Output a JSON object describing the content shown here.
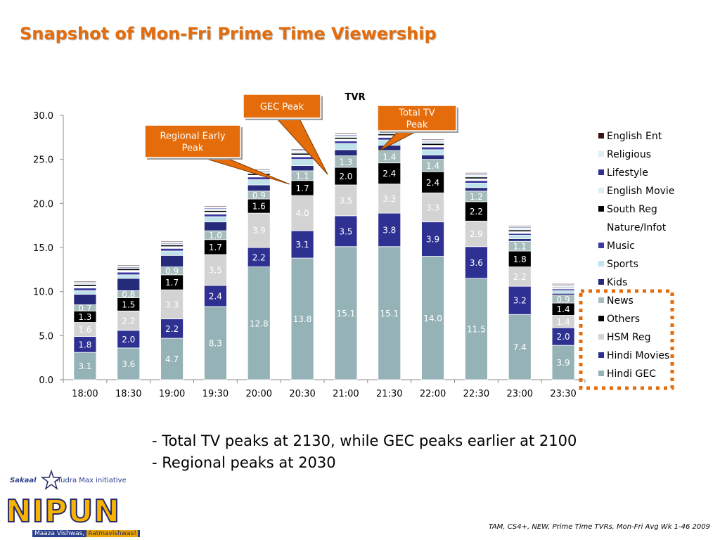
{
  "page": {
    "title": "Snapshot of Mon-Fri Prime Time Viewership",
    "notes": [
      "- Total TV peaks at 2130, while GEC peaks earlier at 2100",
      "- Regional peaks at 2030"
    ],
    "source": "TAM, CS4+, NEW,  Prime Time TVRs, Mon-Fri Avg Wk 1-46 2009",
    "logo": {
      "brand": "Sakaal",
      "initiative": "Mudra Max initiative",
      "word": "NIPUN",
      "tag_left": "Maaza Vishwas,",
      "tag_right": "Aatmavishwas!"
    }
  },
  "callouts": [
    {
      "name": "gec-peak",
      "text": [
        "GEC Peak"
      ]
    },
    {
      "name": "total-tv-peak",
      "text": [
        "Total TV",
        "Peak"
      ]
    },
    {
      "name": "regional-early-peak",
      "text": [
        "Regional Early",
        "Peak"
      ]
    }
  ],
  "chart_data": {
    "type": "bar",
    "stacked": true,
    "title": "TVR",
    "ylim": [
      0,
      30
    ],
    "yticks": [
      "0.0",
      "5.0",
      "10.0",
      "15.0",
      "20.0",
      "25.0",
      "30.0"
    ],
    "ytick_values": [
      0,
      5,
      10,
      15,
      20,
      25,
      30
    ],
    "legend_position": "right",
    "categories": [
      "18:00",
      "18:30",
      "19:00",
      "19:30",
      "20:00",
      "20:30",
      "21:00",
      "21:30",
      "22:00",
      "22:30",
      "23:00",
      "23:30"
    ],
    "series": [
      {
        "name": "Hindi GEC",
        "color": "#95b3b6",
        "label_color": "#ffffff",
        "values": [
          3.1,
          3.6,
          4.7,
          8.3,
          12.8,
          13.8,
          15.1,
          15.1,
          14.0,
          11.5,
          7.4,
          3.9
        ],
        "labels": [
          "3.1",
          "3.6",
          "4.7",
          "8.3",
          "12.8",
          "13.8",
          "15.1",
          "15.1",
          "14.0",
          "11.5",
          "7.4",
          "3.9"
        ]
      },
      {
        "name": "Hindi Movies",
        "color": "#2e3192",
        "label_color": "#ffffff",
        "values": [
          1.8,
          2.0,
          2.2,
          2.4,
          2.2,
          3.1,
          3.5,
          3.8,
          3.9,
          3.6,
          3.2,
          2.0
        ],
        "labels": [
          "1.8",
          "2.0",
          "2.2",
          "2.4",
          "2.2",
          "3.1",
          "3.5",
          "3.8",
          "3.9",
          "3.6",
          "3.2",
          "2.0"
        ]
      },
      {
        "name": "HSM Reg",
        "color": "#d3d3d3",
        "label_color": "#ffffff",
        "values": [
          1.6,
          2.2,
          3.3,
          3.5,
          3.9,
          4.0,
          3.5,
          3.3,
          3.3,
          2.9,
          2.2,
          1.4
        ],
        "labels": [
          "1.6",
          "2.2",
          "3.3",
          "3.5",
          "3.9",
          "4.0",
          "3.5",
          "3.3",
          "3.3",
          "2.9",
          "2.2",
          "1.4"
        ]
      },
      {
        "name": "Others",
        "color": "#000000",
        "label_color": "#ffffff",
        "values": [
          1.3,
          1.5,
          1.7,
          1.7,
          1.6,
          1.7,
          2.0,
          2.4,
          2.4,
          2.2,
          1.8,
          1.4
        ],
        "labels": [
          "1.3",
          "1.5",
          "1.7",
          "1.7",
          "1.6",
          "1.7",
          "2.0",
          "2.4",
          "2.4",
          "2.2",
          "1.8",
          "1.4"
        ]
      },
      {
        "name": "News",
        "color": "#a7bcbc",
        "label_color": "#ffffff",
        "values": [
          0.7,
          0.8,
          0.9,
          1.0,
          0.9,
          1.1,
          1.3,
          1.4,
          1.4,
          1.2,
          1.1,
          0.9
        ],
        "labels": [
          "0.7",
          "0.8",
          "0.9",
          "1.0",
          "0.9",
          "1.1",
          "1.3",
          "1.4",
          "1.4",
          "1.2",
          "1.1",
          "0.9"
        ]
      },
      {
        "name": "Kids",
        "color": "#252a7a",
        "label_color": "#ffffff",
        "values": [
          1.2,
          1.4,
          1.3,
          1.0,
          0.7,
          0.6,
          0.7,
          0.6,
          0.5,
          0.4,
          0.3,
          0.2
        ],
        "labels": [
          "",
          "",
          "",
          "",
          "",
          "",
          "",
          "",
          "",
          "",
          "",
          ""
        ]
      },
      {
        "name": "Sports",
        "color": "#bfe3ea",
        "label_color": "#ffffff",
        "values": [
          0.4,
          0.4,
          0.5,
          0.6,
          0.6,
          0.7,
          0.7,
          0.6,
          0.6,
          0.5,
          0.4,
          0.3
        ],
        "labels": [
          "",
          "",
          "",
          "",
          "",
          "",
          "",
          "",
          "",
          "",
          "",
          ""
        ]
      },
      {
        "name": "Music",
        "color": "#3a3aa0",
        "label_color": "#ffffff",
        "values": [
          0.3,
          0.3,
          0.3,
          0.3,
          0.3,
          0.3,
          0.3,
          0.3,
          0.3,
          0.3,
          0.2,
          0.2
        ],
        "labels": [
          "",
          "",
          "",
          "",
          "",
          "",
          "",
          "",
          "",
          "",
          "",
          ""
        ]
      },
      {
        "name": "Nature/Infot",
        "color": "#ffffff",
        "label_color": "#000000",
        "values": [
          0.2,
          0.2,
          0.2,
          0.2,
          0.2,
          0.2,
          0.2,
          0.2,
          0.2,
          0.2,
          0.2,
          0.1
        ],
        "labels": [
          "",
          "",
          "",
          "",
          "",
          "",
          "",
          "",
          "",
          "",
          "",
          ""
        ]
      },
      {
        "name": "South Reg",
        "color": "#000000",
        "label_color": "#ffffff",
        "values": [
          0.2,
          0.2,
          0.2,
          0.2,
          0.2,
          0.2,
          0.2,
          0.2,
          0.2,
          0.2,
          0.2,
          0.1
        ],
        "labels": [
          "",
          "",
          "",
          "",
          "",
          "",
          "",
          "",
          "",
          "",
          "",
          ""
        ]
      },
      {
        "name": "English Movie",
        "color": "#dceff3",
        "label_color": "#000000",
        "values": [
          0.1,
          0.1,
          0.1,
          0.2,
          0.2,
          0.2,
          0.2,
          0.2,
          0.2,
          0.2,
          0.2,
          0.1
        ],
        "labels": [
          "",
          "",
          "",
          "",
          "",
          "",
          "",
          "",
          "",
          "",
          "",
          ""
        ]
      },
      {
        "name": "Lifestyle",
        "color": "#2e3192",
        "label_color": "#ffffff",
        "values": [
          0.1,
          0.1,
          0.1,
          0.1,
          0.1,
          0.1,
          0.1,
          0.1,
          0.1,
          0.1,
          0.1,
          0.1
        ],
        "labels": [
          "",
          "",
          "",
          "",
          "",
          "",
          "",
          "",
          "",
          "",
          "",
          ""
        ]
      },
      {
        "name": "Religious",
        "color": "#dceff3",
        "label_color": "#000000",
        "values": [
          0.1,
          0.1,
          0.1,
          0.1,
          0.1,
          0.1,
          0.1,
          0.1,
          0.1,
          0.1,
          0.1,
          0.1
        ],
        "labels": [
          "",
          "",
          "",
          "",
          "",
          "",
          "",
          "",
          "",
          "",
          "",
          ""
        ]
      },
      {
        "name": "English Ent",
        "color": "#3a1010",
        "label_color": "#ffffff",
        "values": [
          0.1,
          0.1,
          0.1,
          0.1,
          0.1,
          0.1,
          0.1,
          0.1,
          0.1,
          0.1,
          0.1,
          0.1
        ],
        "labels": [
          "",
          "",
          "",
          "",
          "",
          "",
          "",
          "",
          "",
          "",
          "",
          ""
        ]
      }
    ],
    "legend": [
      "English Ent",
      "Religious",
      "Lifestyle",
      "English Movie",
      "South Reg",
      "Nature/Infot",
      "Music",
      "Sports",
      "Kids",
      "News",
      "Others",
      "HSM Reg",
      "Hindi Movies",
      "Hindi GEC"
    ],
    "highlight_color": "#e46c0a"
  }
}
